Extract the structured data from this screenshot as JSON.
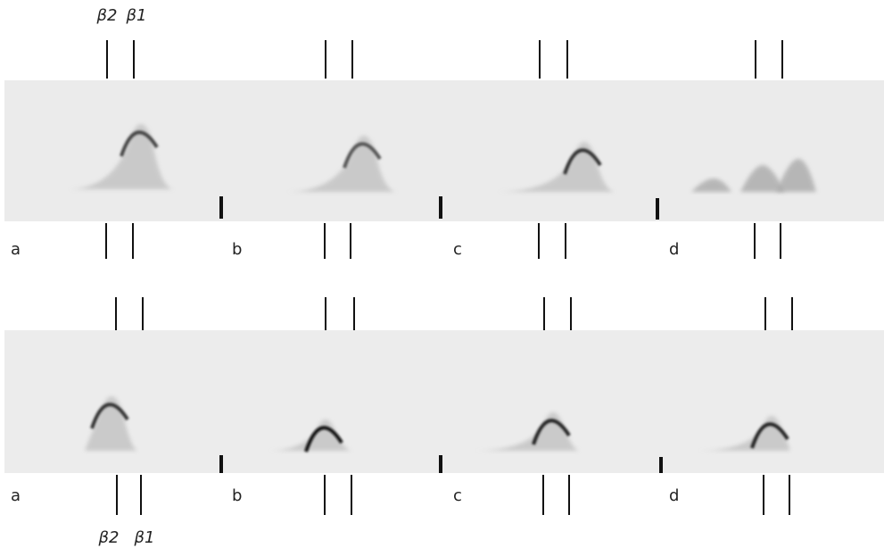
{
  "top_labels": [
    "β2",
    "β1"
  ],
  "bottom_labels": [
    "β2",
    "β1"
  ],
  "rows": [
    {
      "panels": [
        "a",
        "b",
        "c",
        "d"
      ]
    },
    {
      "panels": [
        "a",
        "b",
        "c",
        "d"
      ]
    }
  ]
}
